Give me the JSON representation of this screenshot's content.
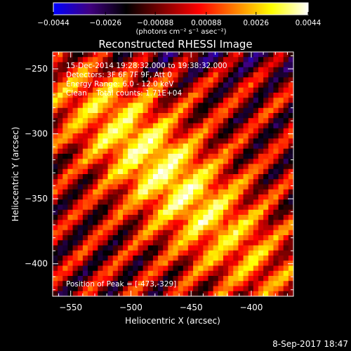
{
  "chart_data": {
    "type": "heatmap",
    "title": "Reconstructed RHESSI Image",
    "xlabel": "Heliocentric X (arcsec)",
    "ylabel": "Heliocentric Y (arcsec)",
    "xlim": [
      -565,
      -365
    ],
    "ylim": [
      -425,
      -237
    ],
    "xticks": [
      -550,
      -500,
      -450,
      -400
    ],
    "xtick_labels": [
      "−550",
      "−500",
      "−450",
      "−400"
    ],
    "yticks": [
      -250,
      -300,
      -350,
      -400
    ],
    "ytick_labels": [
      "−250",
      "−300",
      "−350",
      "−400"
    ],
    "colorbar": {
      "min": -0.0044,
      "max": 0.0044,
      "ticks": [
        -0.0044,
        -0.0026,
        -0.00088,
        0.00088,
        0.0026,
        0.0044
      ],
      "tick_labels": [
        "−0.0044",
        "−0.0026",
        "−0.00088",
        "0.00088",
        "0.0026",
        "0.0044"
      ],
      "units_label": "(photons cm⁻² s⁻¹ asec⁻²)",
      "colormap": [
        "#0000ff",
        "#400080",
        "#000000",
        "#800000",
        "#ff0000",
        "#ff8000",
        "#ffff00",
        "#ffffff"
      ]
    },
    "annotations": [
      "15-Dec-2014 19:28:32.000 to 19:38:32.000",
      "Detectors: 3F 6F 7F 9F, Att 0",
      "Energy Range: 6.0 - 12.0 keV",
      "Clean    Total counts: 1.71E+04",
      "Position of Peak = [-473,-329]"
    ],
    "peak": {
      "x": -473,
      "y": -329
    },
    "grid": false,
    "timestamp": "8-Sep-2017 18:47"
  }
}
